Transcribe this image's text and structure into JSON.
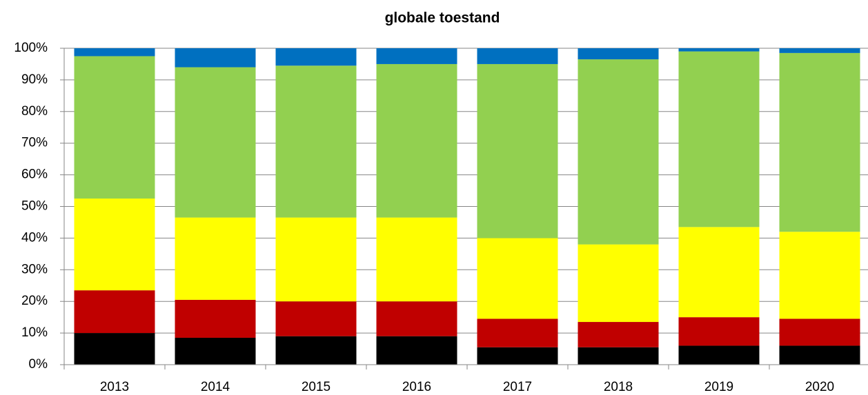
{
  "chart_data": {
    "type": "stacked_bar",
    "title": "globale toestand",
    "categories": [
      "2013",
      "2014",
      "2015",
      "2016",
      "2017",
      "2018",
      "2019",
      "2020"
    ],
    "series": [
      {
        "color": "#000000",
        "values": [
          10,
          8.5,
          9,
          9,
          5.5,
          5.5,
          6,
          6
        ]
      },
      {
        "color": "#c00000",
        "values": [
          13.5,
          12,
          11,
          11,
          9,
          8,
          9,
          8.5
        ]
      },
      {
        "color": "#ffff00",
        "values": [
          29,
          26,
          26.5,
          26.5,
          25.5,
          24.5,
          28.5,
          27.5
        ]
      },
      {
        "color": "#92d050",
        "values": [
          45,
          47.5,
          48,
          48.5,
          55,
          58.5,
          55.5,
          56.5
        ]
      },
      {
        "color": "#0070c0",
        "values": [
          2.5,
          6,
          5.5,
          5,
          5,
          3.5,
          1,
          1.5
        ]
      }
    ],
    "ylim": [
      0,
      100
    ],
    "yticks": [
      {
        "value": 0,
        "label": "0%"
      },
      {
        "value": 10,
        "label": "10%"
      },
      {
        "value": 20,
        "label": "20%"
      },
      {
        "value": 30,
        "label": "30%"
      },
      {
        "value": 40,
        "label": "40%"
      },
      {
        "value": 50,
        "label": "50%"
      },
      {
        "value": 60,
        "label": "60%"
      },
      {
        "value": 70,
        "label": "70%"
      },
      {
        "value": 80,
        "label": "80%"
      },
      {
        "value": 90,
        "label": "90%"
      },
      {
        "value": 100,
        "label": "100%"
      }
    ],
    "grid": true
  }
}
